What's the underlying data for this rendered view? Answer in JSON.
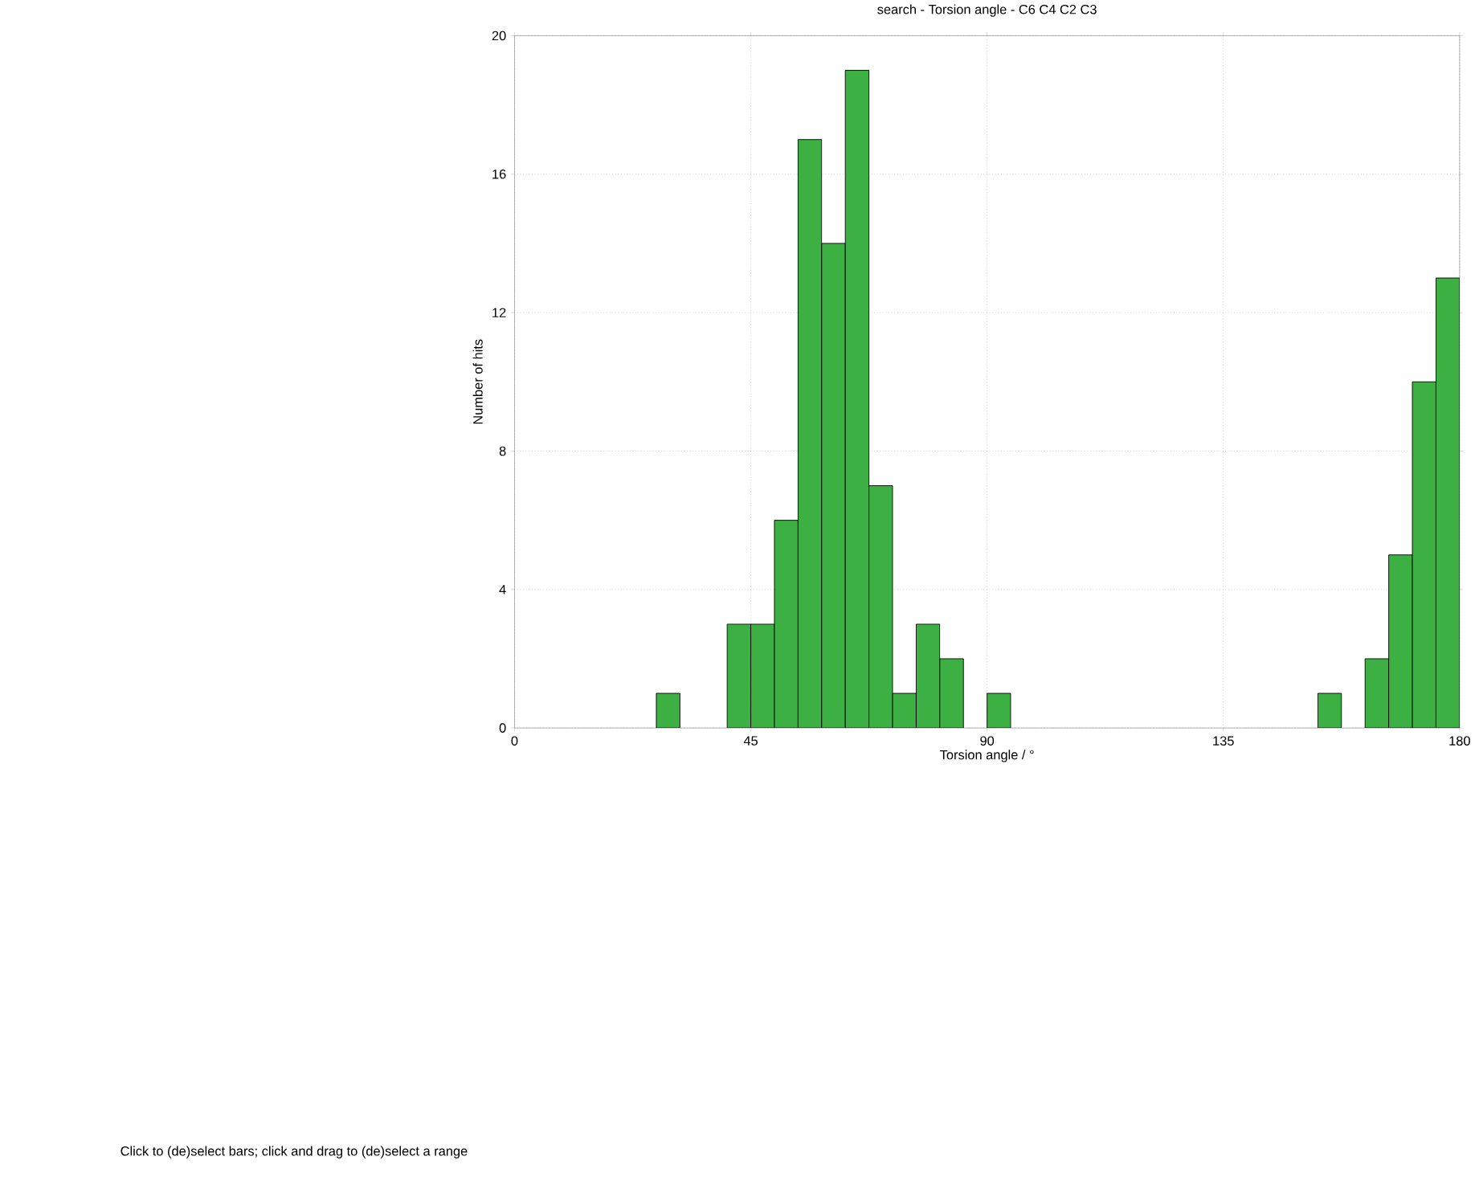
{
  "chart_data": {
    "type": "histogram",
    "title": "search - Torsion angle - C6 C4 C2 C3",
    "xlabel": "Torsion angle / °",
    "ylabel": "Number of hits",
    "bins": [
      0,
      4.5,
      9,
      13.5,
      18,
      22.5,
      27,
      31.5,
      36,
      40.5,
      45,
      49.5,
      54,
      58.5,
      63,
      67.5,
      72,
      76.5,
      81,
      85.5,
      90,
      94.5,
      99,
      103.5,
      108,
      112.5,
      117,
      121.5,
      126,
      130.5,
      135,
      139.5,
      144,
      148.5,
      153,
      157.5,
      162,
      166.5,
      171,
      175.5,
      180
    ],
    "values": [
      0,
      0,
      0,
      0,
      0,
      0,
      1,
      0,
      0,
      3,
      3,
      6,
      17,
      14,
      19,
      7,
      1,
      3,
      2,
      0,
      1,
      0,
      0,
      0,
      0,
      0,
      0,
      0,
      0,
      0,
      0,
      0,
      0,
      0,
      1,
      0,
      2,
      5,
      10,
      13
    ],
    "color": "#3cb043",
    "xlim": [
      0,
      180
    ],
    "xticks": [
      0,
      45,
      90,
      135,
      180
    ],
    "ylim": [
      0,
      20
    ],
    "yticks": [
      0,
      4,
      8,
      12,
      16,
      20
    ],
    "grid": true,
    "annotations": [
      "Click to (de)select bars; click and drag to (de)select a range"
    ]
  }
}
